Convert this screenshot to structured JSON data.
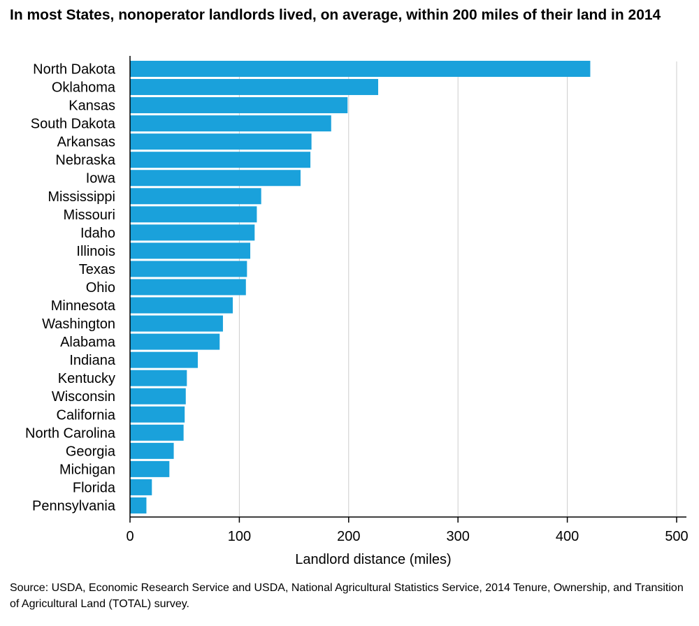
{
  "title": "In most States, nonoperator landlords lived, on average, within 200 miles of their land in 2014",
  "source": "Source: USDA, Economic Research Service and USDA, National Agricultural Statistics Service, 2014 Tenure, Ownership, and Transition of Agricultural Land (TOTAL) survey.",
  "colors": {
    "bar": "#1aa1db",
    "grid": "#cccccc",
    "axis": "#000000"
  },
  "chart_data": {
    "type": "bar",
    "orientation": "horizontal",
    "title": "In most States, nonoperator landlords lived, on average, within 200 miles of their land in 2014",
    "xlabel": "Landlord distance (miles)",
    "ylabel": "",
    "xlim": [
      0,
      500
    ],
    "xticks": [
      0,
      100,
      200,
      300,
      400,
      500
    ],
    "grid": "vertical",
    "categories": [
      "North Dakota",
      "Oklahoma",
      "Kansas",
      "South Dakota",
      "Arkansas",
      "Nebraska",
      "Iowa",
      "Mississippi",
      "Missouri",
      "Idaho",
      "Illinois",
      "Texas",
      "Ohio",
      "Minnesota",
      "Washington",
      "Alabama",
      "Indiana",
      "Kentucky",
      "Wisconsin",
      "California",
      "North Carolina",
      "Georgia",
      "Michigan",
      "Florida",
      "Pennsylvania"
    ],
    "values": [
      421,
      227,
      199,
      184,
      166,
      165,
      156,
      120,
      116,
      114,
      110,
      107,
      106,
      94,
      85,
      82,
      62,
      52,
      51,
      50,
      49,
      40,
      36,
      20,
      15
    ]
  }
}
